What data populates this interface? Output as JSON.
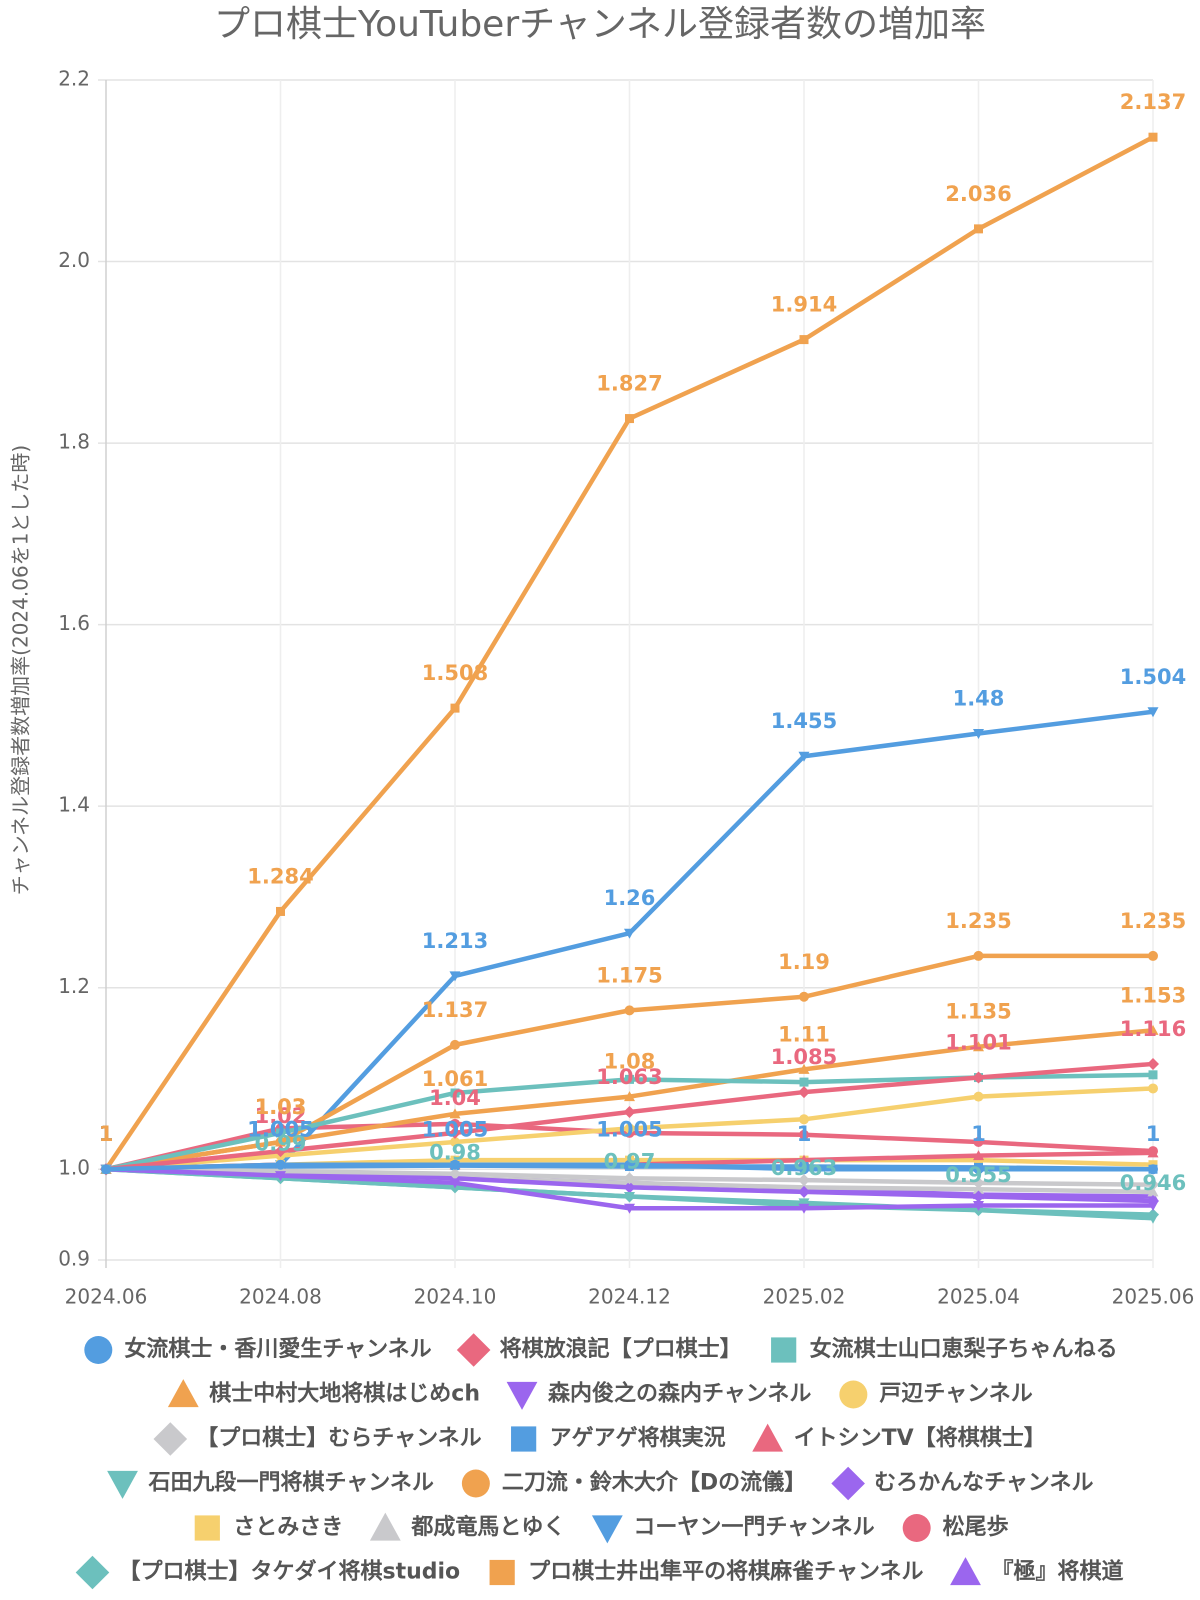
{
  "chart_data": {
    "type": "line",
    "title": "プロ棋士YouTuberチャンネル登録者数の増加率",
    "y_label": "チャンネル登録者数増加率(2024.06を1とした時)",
    "categories": [
      "2024.06",
      "2024.08",
      "2024.10",
      "2024.12",
      "2025.02",
      "2025.04",
      "2025.06"
    ],
    "ylim": [
      0.9,
      2.2
    ],
    "yticks": [
      0.9,
      {
        "value": 1,
        "label": "1.0"
      },
      1.2,
      1.4,
      1.6,
      1.8,
      {
        "value": 2,
        "label": "2.0"
      },
      2.2
    ],
    "grid": true,
    "legend": "bottom",
    "series": [
      {
        "name": "女流棋士・香川愛生チャンネル",
        "color": "#539de0",
        "marker": "circle",
        "data_labels": true,
        "values": [
          1,
          1.005,
          1.005,
          1.005,
          1,
          1,
          1
        ]
      },
      {
        "name": "将棋放浪記【プロ棋士】",
        "color": "#e9687f",
        "marker": "diamond",
        "data_labels": true,
        "values": [
          1,
          1.02,
          1.04,
          1.063,
          1.085,
          1.101,
          1.116
        ]
      },
      {
        "name": "女流棋士山口恵梨子ちゃんねる",
        "color": "#6cc0bd",
        "marker": "square",
        "values": [
          1,
          1.04,
          1.084,
          1.099,
          1.096,
          1.101,
          1.104
        ]
      },
      {
        "name": "棋士中村大地将棋はじめch",
        "color": "#f0a24f",
        "marker": "triangle",
        "data_labels": true,
        "values": [
          1,
          1.03,
          1.061,
          1.08,
          1.11,
          1.135,
          1.153
        ]
      },
      {
        "name": "森内俊之の森内チャンネル",
        "color": "#9b66ee",
        "marker": "triangle-down",
        "values": [
          1,
          0.993,
          0.985,
          0.957,
          0.957,
          0.96,
          0.96
        ]
      },
      {
        "name": "戸辺チャンネル",
        "color": "#f6d06e",
        "marker": "circle",
        "values": [
          1,
          1.015,
          1.03,
          1.045,
          1.055,
          1.08,
          1.089
        ]
      },
      {
        "name": "【プロ棋士】むらチャンネル",
        "color": "#c9c9cc",
        "marker": "diamond",
        "values": [
          1,
          0.998,
          0.995,
          0.99,
          0.988,
          0.985,
          0.983
        ]
      },
      {
        "name": "アゲアゲ将棋実況",
        "color": "#539de0",
        "marker": "square",
        "values": [
          1,
          1.003,
          1.004,
          1.003,
          1.003,
          1.002,
          1
        ]
      },
      {
        "name": "イトシンTV【将棋棋士】",
        "color": "#e9687f",
        "marker": "triangle",
        "values": [
          1,
          1.005,
          1.005,
          1.005,
          1.01,
          1.015,
          1.018
        ]
      },
      {
        "name": "石田九段一門将棋チャンネル",
        "color": "#6cc0bd",
        "marker": "triangle-down",
        "data_labels": true,
        "values": [
          1,
          0.99,
          0.98,
          0.97,
          0.963,
          0.955,
          0.946
        ]
      },
      {
        "name": "二刀流・鈴木大介【Dの流儀】",
        "color": "#f0a24f",
        "marker": "circle",
        "data_labels": true,
        "values": [
          1,
          1.03,
          1.137,
          1.175,
          1.19,
          1.235,
          1.235
        ]
      },
      {
        "name": "むろかんなチャンネル",
        "color": "#9b66ee",
        "marker": "diamond",
        "values": [
          1,
          0.997,
          0.99,
          0.98,
          0.975,
          0.97,
          0.965
        ]
      },
      {
        "name": "さとみさき",
        "color": "#f6d06e",
        "marker": "square",
        "values": [
          1,
          1.005,
          1.01,
          1.01,
          1.01,
          1.01,
          1.005
        ]
      },
      {
        "name": "都成竜馬とゆく",
        "color": "#c9c9cc",
        "marker": "triangle",
        "values": [
          1,
          0.995,
          0.99,
          0.985,
          0.98,
          0.978,
          0.975
        ]
      },
      {
        "name": "コーヤン一門チャンネル",
        "color": "#539de0",
        "marker": "triangle-down",
        "data_labels": true,
        "values": [
          1,
          1.005,
          1.213,
          1.26,
          1.455,
          1.48,
          1.504
        ]
      },
      {
        "name": "松尾歩",
        "color": "#e9687f",
        "marker": "circle",
        "values": [
          1,
          1.045,
          1.05,
          1.04,
          1.038,
          1.03,
          1.02
        ]
      },
      {
        "name": "【プロ棋士】タケダイ将棋studio",
        "color": "#6cc0bd",
        "marker": "diamond",
        "values": [
          1,
          0.99,
          0.98,
          0.97,
          0.96,
          0.955,
          0.95
        ]
      },
      {
        "name": "プロ棋士井出隼平の将棋麻雀チャンネル",
        "color": "#f0a24f",
        "marker": "square",
        "data_labels": true,
        "values": [
          1,
          1.284,
          1.508,
          1.827,
          1.914,
          2.036,
          2.137
        ]
      },
      {
        "name": "『極』将棋道",
        "color": "#9b66ee",
        "marker": "triangle",
        "values": [
          1,
          0.995,
          0.99,
          0.985,
          0.978,
          0.972,
          0.97
        ]
      }
    ]
  }
}
